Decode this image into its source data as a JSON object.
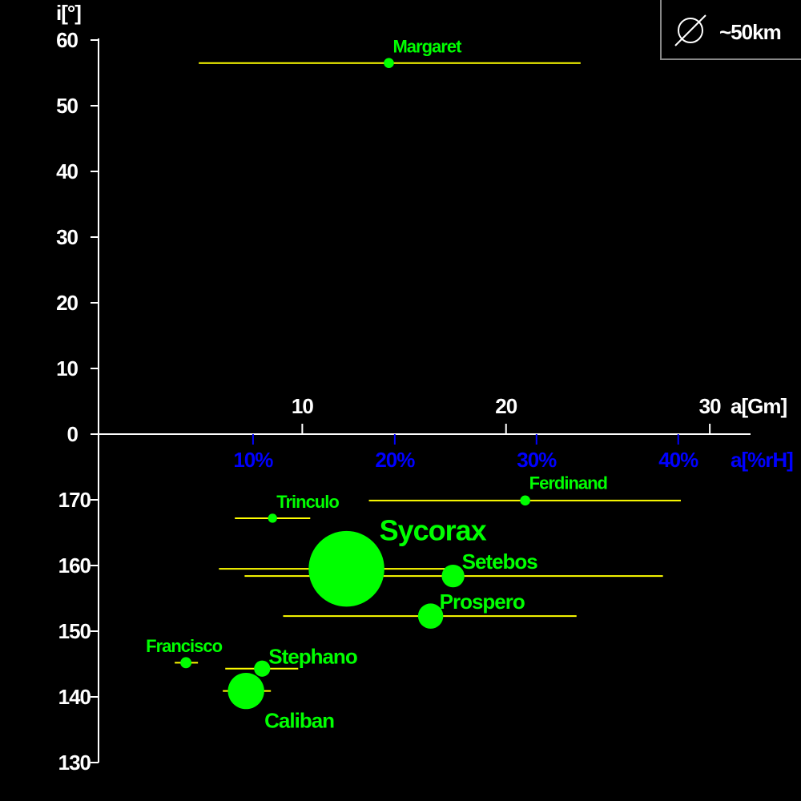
{
  "chart_data": {
    "type": "bubble",
    "xlabel": "a[Gm]",
    "x2label": "a[%rH]",
    "ylabel": "i[°]",
    "legend": "~50km",
    "xlim": [
      0,
      32
    ],
    "xticks": [
      10,
      20,
      30
    ],
    "x2lim": [
      -0.9,
      45.1
    ],
    "x2ticks": [
      {
        "value": 10,
        "label": "10%"
      },
      {
        "value": 20,
        "label": "20%"
      },
      {
        "value": 30,
        "label": "30%"
      },
      {
        "value": 40,
        "label": "40%"
      }
    ],
    "ylim": [
      0,
      60
    ],
    "yticks": [
      0,
      10,
      20,
      30,
      40,
      50,
      60
    ],
    "y2lim": [
      180,
      130
    ],
    "y2ticks": [
      130,
      140,
      150,
      160,
      170
    ],
    "color": "#00ff00",
    "range_color": "#ffff00",
    "x2_color": "#0000ff",
    "points": [
      {
        "name": "Margaret",
        "x": 14.25,
        "y": 56.5,
        "size": 20,
        "peri": 4.92,
        "apo": 23.66
      },
      {
        "name": "Ferdinand",
        "x": 20.94,
        "y": 169.9,
        "size": 20,
        "peri": 13.27,
        "apo": 28.58,
        "axis": "y2"
      },
      {
        "name": "Trinculo",
        "x": 8.54,
        "y": 167.2,
        "size": 18,
        "peri": 6.69,
        "apo": 10.39,
        "axis": "y2"
      },
      {
        "name": "Sycorax",
        "x": 12.17,
        "y": 159.5,
        "size": 150,
        "peri": 5.91,
        "apo": 17.0,
        "axis": "y2"
      },
      {
        "name": "Setebos",
        "x": 17.4,
        "y": 158.4,
        "size": 45,
        "peri": 7.17,
        "apo": 27.7,
        "axis": "y2"
      },
      {
        "name": "Prospero",
        "x": 16.3,
        "y": 152.3,
        "size": 50,
        "peri": 9.06,
        "apo": 23.46,
        "axis": "y2"
      },
      {
        "name": "Francisco",
        "x": 4.29,
        "y": 145.2,
        "size": 22,
        "peri": 3.74,
        "apo": 4.88,
        "axis": "y2"
      },
      {
        "name": "Stephano",
        "x": 8.03,
        "y": 144.3,
        "size": 32,
        "peri": 6.22,
        "apo": 9.8,
        "axis": "y2"
      },
      {
        "name": "Caliban",
        "x": 7.24,
        "y": 140.9,
        "size": 72,
        "peri": 6.1,
        "apo": 8.46,
        "axis": "y2"
      }
    ]
  }
}
